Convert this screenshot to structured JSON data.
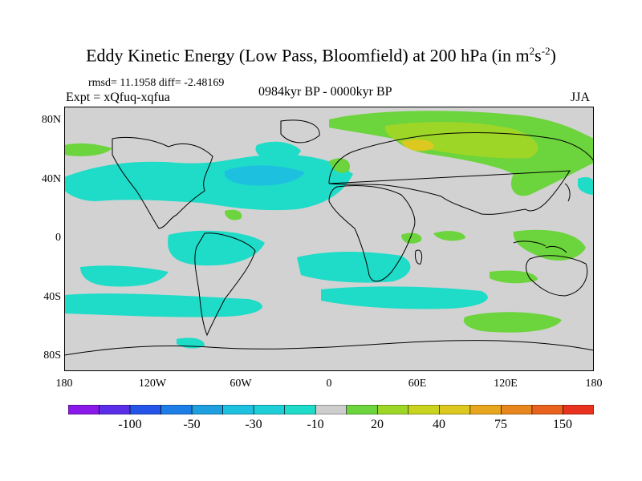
{
  "figure": {
    "title_main": "Eddy Kinetic Energy (Low Pass, Bloomfield) at 200 hPa (in m",
    "title_sup1": "2",
    "title_mid": "s",
    "title_sup2": "-2",
    "title_end": ")",
    "stats": "rmsd= 11.1958 diff= -2.48169",
    "expt": "Expt = xQfuq-xqfua",
    "period": "0984kyr BP - 0000kyr BP",
    "season": "JJA"
  },
  "map": {
    "lat_labels": [
      "80N",
      "40N",
      "0",
      "40S",
      "80S"
    ],
    "lon_labels": [
      "180",
      "120W",
      "60W",
      "0",
      "60E",
      "120E",
      "180"
    ],
    "land_color": "#d2d2d2",
    "lon_range": [
      -180,
      180
    ],
    "lat_range": [
      -90,
      90
    ]
  },
  "colorbar": {
    "colors": [
      "#8a18e8",
      "#5a2ee8",
      "#2455e8",
      "#1e7ee8",
      "#1ea0e0",
      "#1ec0e0",
      "#1ecfd8",
      "#1edcc8",
      "#cdcdcd",
      "#6cd43c",
      "#9ed628",
      "#c8d41e",
      "#dcc81e",
      "#e8a61e",
      "#e8861e",
      "#e8621e",
      "#e8321e"
    ],
    "labels": [
      "-100",
      "-50",
      "-30",
      "-10",
      "20",
      "40",
      "75",
      "150"
    ]
  }
}
